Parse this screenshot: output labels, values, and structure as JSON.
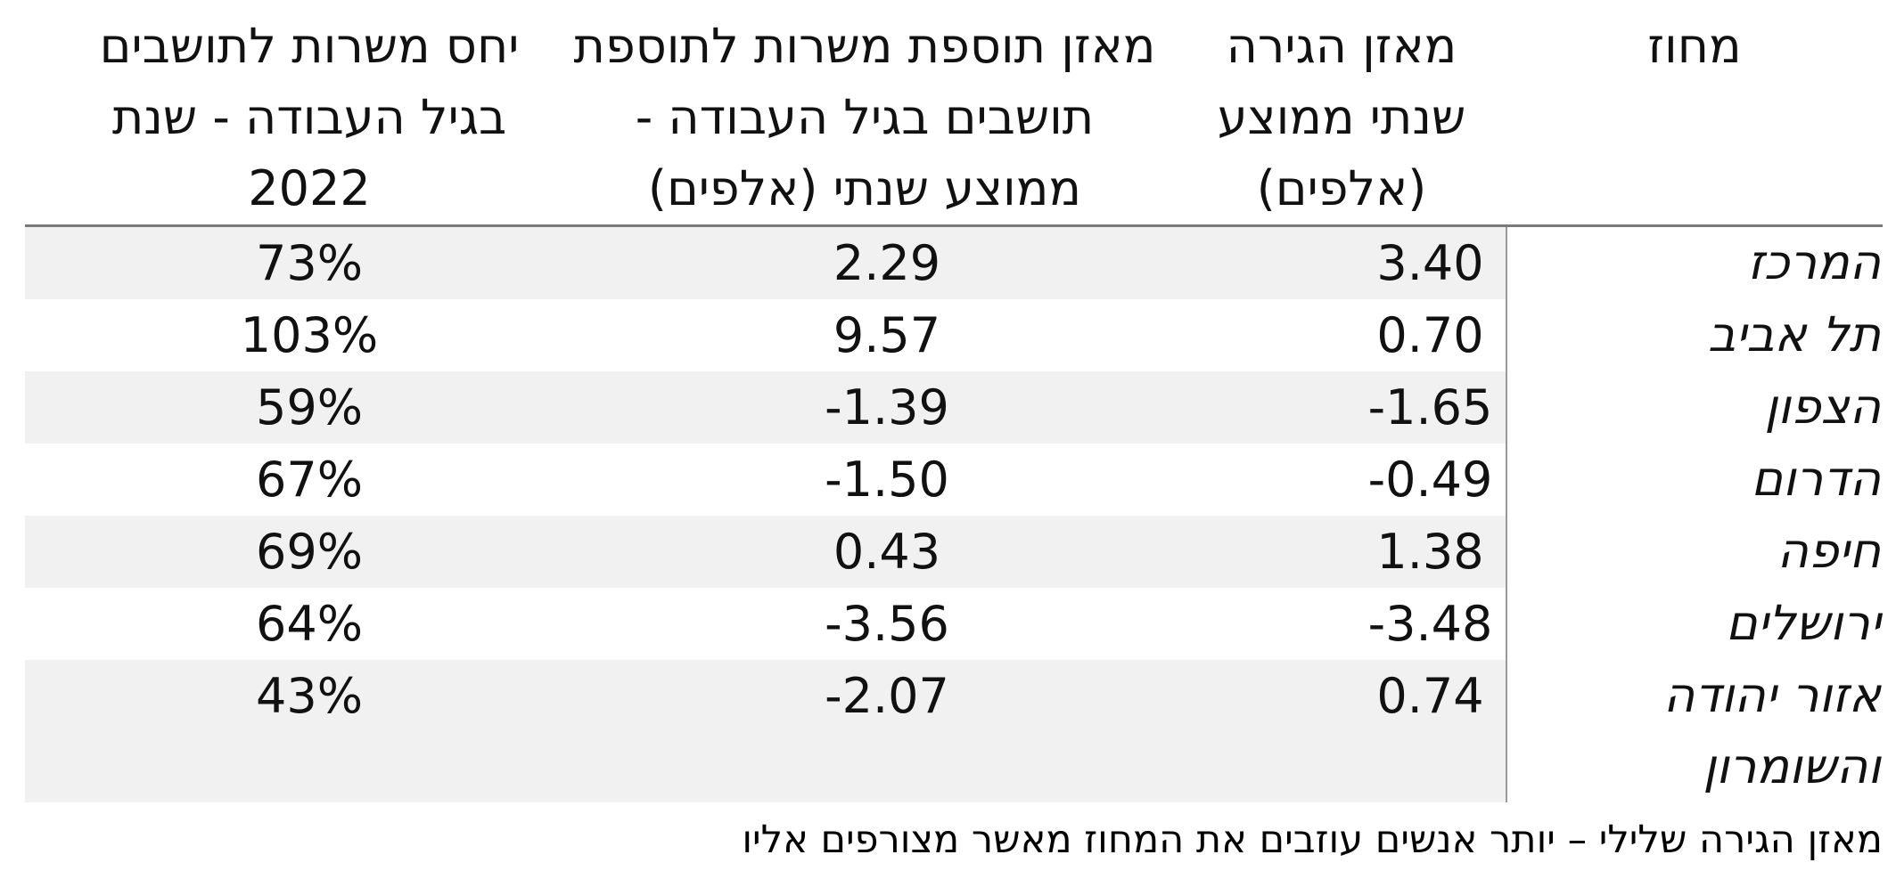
{
  "table": {
    "columns": [
      {
        "id": "district",
        "lines": [
          "מחוז"
        ]
      },
      {
        "id": "migration",
        "lines": [
          "מאזן הגירה",
          "שנתי ממוצע",
          "(אלפים)"
        ]
      },
      {
        "id": "jobs_balance",
        "lines": [
          "מאזן תוספת משרות לתוספת",
          "תושבים בגיל העבודה -",
          "ממוצע שנתי (אלפים)"
        ]
      },
      {
        "id": "jobs_ratio",
        "lines": [
          "יחס משרות לתושבים",
          "בגיל העבודה - שנת",
          "2022"
        ]
      }
    ],
    "rows": [
      {
        "district": "המרכז",
        "migration": "3.40",
        "jobs_balance": "2.29",
        "jobs_ratio": "73%"
      },
      {
        "district": "תל אביב",
        "migration": "0.70",
        "jobs_balance": "9.57",
        "jobs_ratio": "103%"
      },
      {
        "district": "הצפון",
        "migration": "-1.65",
        "jobs_balance": "-1.39",
        "jobs_ratio": "59%"
      },
      {
        "district": "הדרום",
        "migration": "-0.49",
        "jobs_balance": "-1.50",
        "jobs_ratio": "67%"
      },
      {
        "district": "חיפה",
        "migration": "1.38",
        "jobs_balance": "0.43",
        "jobs_ratio": "69%"
      },
      {
        "district": "ירושלים",
        "migration": "-3.48",
        "jobs_balance": "-3.56",
        "jobs_ratio": "64%"
      },
      {
        "district": "אזור יהודה והשומרון",
        "migration": "0.74",
        "jobs_balance": "-2.07",
        "jobs_ratio": "43%"
      }
    ],
    "footnote": "מאזן הגירה שלילי – יותר אנשים עוזבים את המחוז מאשר מצורפים אליו"
  },
  "colors": {
    "stripe": "#f1f1f1",
    "header_rule": "#7a7a7a",
    "divider_line": "#999999",
    "text": "#111111",
    "background": "#ffffff"
  },
  "chart_data": {
    "type": "table",
    "title": "",
    "categories": [
      "המרכז",
      "תל אביב",
      "הצפון",
      "הדרום",
      "חיפה",
      "ירושלים",
      "אזור יהודה והשומרון"
    ],
    "series": [
      {
        "name": "מאזן הגירה שנתי ממוצע (אלפים)",
        "values": [
          3.4,
          0.7,
          -1.65,
          -0.49,
          1.38,
          -3.48,
          0.74
        ]
      },
      {
        "name": "מאזן תוספת משרות לתוספת תושבים בגיל העבודה - ממוצע שנתי (אלפים)",
        "values": [
          2.29,
          9.57,
          -1.39,
          -1.5,
          0.43,
          -3.56,
          -2.07
        ]
      },
      {
        "name": "יחס משרות לתושבים בגיל העבודה - שנת 2022",
        "values": [
          "73%",
          "103%",
          "59%",
          "67%",
          "69%",
          "64%",
          "43%"
        ]
      }
    ],
    "layout": {
      "direction": "rtl",
      "striped_rows": true,
      "legend_position": "none",
      "grid": "off"
    },
    "annotations": [
      "מאזן הגירה שלילי – יותר אנשים עוזבים את המחוז מאשר מצורפים אליו"
    ]
  }
}
